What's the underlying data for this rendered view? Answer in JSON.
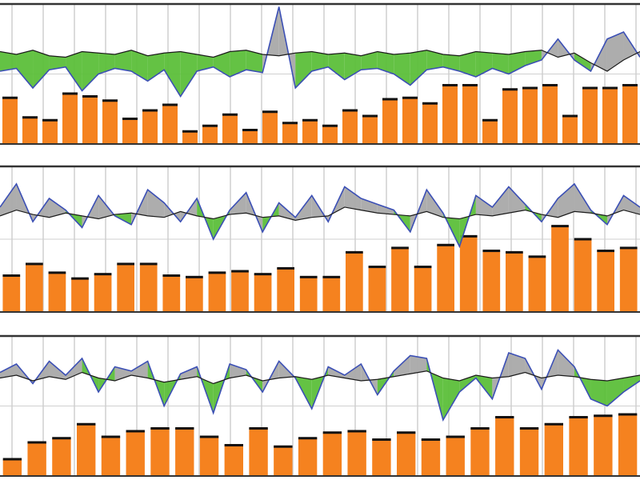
{
  "colors": {
    "bar": "#f5821f",
    "bar_cap": "#111111",
    "line_reference": "#1a1a1a",
    "line_measured": "#3b4fb5",
    "fill_below": "#5cbf3a",
    "fill_above": "#a9a9a9",
    "grid": "#cfcfcf",
    "frame": "#333333"
  },
  "chart_data": [
    {
      "type": "bar+line",
      "title": "",
      "xlabel": "",
      "ylabel": "",
      "ylim": [
        0,
        100
      ],
      "grid": true,
      "bars": [
        33,
        19,
        17,
        36,
        34,
        31,
        18,
        24,
        28,
        9,
        13,
        21,
        10,
        23,
        15,
        17,
        13,
        24,
        20,
        32,
        33,
        29,
        42,
        42,
        17,
        39,
        40,
        42,
        20,
        40,
        40,
        42
      ],
      "series": [
        {
          "name": "reference",
          "values": [
            66,
            64,
            67,
            63,
            62,
            66,
            65,
            64,
            67,
            63,
            65,
            66,
            64,
            62,
            66,
            67,
            64,
            63,
            65,
            66,
            64,
            65,
            63,
            66,
            64,
            65,
            67,
            64,
            63,
            66,
            65,
            64,
            66,
            67,
            62,
            65,
            58,
            52,
            60,
            66
          ]
        },
        {
          "name": "measured",
          "values": [
            52,
            54,
            40,
            53,
            55,
            38,
            50,
            54,
            52,
            45,
            53,
            34,
            52,
            55,
            48,
            53,
            51,
            98,
            40,
            52,
            55,
            46,
            53,
            54,
            50,
            42,
            53,
            55,
            52,
            48,
            54,
            50,
            56,
            60,
            75,
            60,
            52,
            75,
            80,
            62
          ]
        }
      ]
    },
    {
      "type": "bar+line",
      "title": "",
      "xlabel": "",
      "ylabel": "",
      "ylim": [
        0,
        100
      ],
      "grid": true,
      "bars": [
        25,
        33,
        27,
        23,
        26,
        33,
        33,
        25,
        24,
        27,
        28,
        26,
        30,
        24,
        24,
        41,
        31,
        44,
        31,
        46,
        52,
        42,
        41,
        38,
        59,
        50,
        42,
        44
      ],
      "series": [
        {
          "name": "reference",
          "values": [
            66,
            70,
            67,
            65,
            68,
            66,
            64,
            67,
            68,
            66,
            65,
            69,
            66,
            64,
            67,
            68,
            65,
            66,
            63,
            65,
            66,
            72,
            70,
            68,
            67,
            66,
            69,
            65,
            64,
            67,
            66,
            68,
            70,
            67,
            65,
            69,
            68,
            66,
            70,
            67
          ]
        },
        {
          "name": "measured",
          "values": [
            72,
            88,
            62,
            78,
            70,
            58,
            80,
            66,
            60,
            84,
            75,
            62,
            78,
            50,
            70,
            82,
            55,
            75,
            65,
            80,
            62,
            86,
            78,
            74,
            70,
            55,
            84,
            68,
            45,
            80,
            72,
            86,
            74,
            62,
            78,
            88,
            70,
            60,
            80,
            72
          ]
        }
      ]
    },
    {
      "type": "bar+line",
      "title": "",
      "xlabel": "",
      "ylabel": "",
      "ylim": [
        0,
        100
      ],
      "grid": true,
      "bars": [
        12,
        24,
        27,
        37,
        28,
        32,
        34,
        34,
        28,
        22,
        34,
        21,
        27,
        31,
        32,
        26,
        31,
        26,
        28,
        34,
        42,
        34,
        37,
        42,
        43,
        44
      ],
      "series": [
        {
          "name": "reference",
          "values": [
            70,
            72,
            68,
            71,
            69,
            74,
            70,
            68,
            72,
            70,
            67,
            69,
            71,
            66,
            70,
            72,
            68,
            70,
            71,
            69,
            72,
            70,
            68,
            69,
            71,
            73,
            75,
            70,
            68,
            72,
            70,
            71,
            74,
            70,
            72,
            71,
            69,
            68,
            70,
            72
          ]
        },
        {
          "name": "measured",
          "values": [
            74,
            80,
            66,
            82,
            72,
            84,
            60,
            78,
            75,
            82,
            50,
            73,
            78,
            45,
            80,
            76,
            60,
            82,
            70,
            48,
            78,
            72,
            80,
            58,
            75,
            86,
            84,
            40,
            60,
            70,
            55,
            88,
            84,
            62,
            90,
            78,
            55,
            50,
            60,
            68
          ]
        }
      ]
    }
  ]
}
